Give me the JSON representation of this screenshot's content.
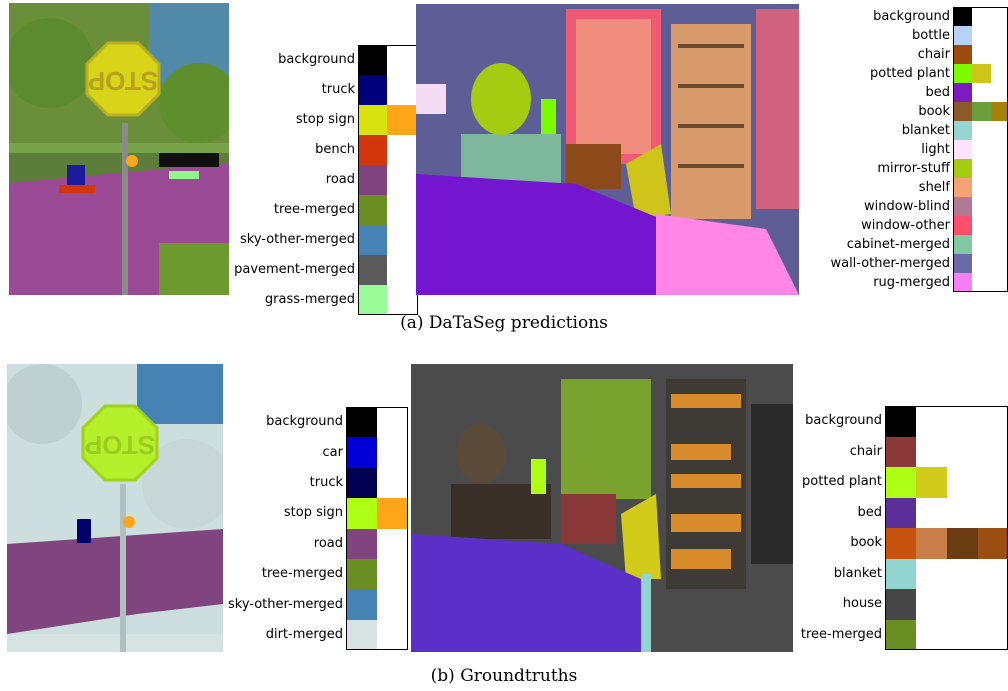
{
  "captions": {
    "a": "(a)  DaTaSeg predictions",
    "b": "(b)  Groundtruths"
  },
  "images": {
    "pred_street": {
      "sign_text": "STOP"
    },
    "gt_street": {
      "sign_text": "STOP"
    }
  },
  "legends": {
    "pred_street": [
      {
        "label": "background",
        "colors": [
          "#000000"
        ]
      },
      {
        "label": "truck",
        "colors": [
          "#00007a"
        ]
      },
      {
        "label": "stop sign",
        "colors": [
          "#d8e20d",
          "#ffa51a"
        ]
      },
      {
        "label": "bench",
        "colors": [
          "#d2370c"
        ]
      },
      {
        "label": "road",
        "colors": [
          "#80457f"
        ]
      },
      {
        "label": "tree-merged",
        "colors": [
          "#6b8e23"
        ]
      },
      {
        "label": "sky-other-merged",
        "colors": [
          "#4682b4"
        ]
      },
      {
        "label": "pavement-merged",
        "colors": [
          "#5a5a5a"
        ]
      },
      {
        "label": "grass-merged",
        "colors": [
          "#98fb98"
        ]
      }
    ],
    "pred_room": [
      {
        "label": "background",
        "colors": [
          "#000000"
        ]
      },
      {
        "label": "bottle",
        "colors": [
          "#b7d2f7"
        ]
      },
      {
        "label": "chair",
        "colors": [
          "#9e4a0c"
        ]
      },
      {
        "label": "potted plant",
        "colors": [
          "#7cfc00",
          "#cfc41a"
        ]
      },
      {
        "label": "bed",
        "colors": [
          "#7d1bbf"
        ]
      },
      {
        "label": "book",
        "colors": [
          "#8b5a2b",
          "#6a9f3b",
          "#a88208"
        ]
      },
      {
        "label": "blanket",
        "colors": [
          "#96d5d0"
        ]
      },
      {
        "label": "light",
        "colors": [
          "#ffe2ff"
        ]
      },
      {
        "label": "mirror-stuff",
        "colors": [
          "#a4cc11"
        ]
      },
      {
        "label": "shelf",
        "colors": [
          "#f6a274"
        ]
      },
      {
        "label": "window-blind",
        "colors": [
          "#b37a93"
        ]
      },
      {
        "label": "window-other",
        "colors": [
          "#ff4f6c"
        ]
      },
      {
        "label": "cabinet-merged",
        "colors": [
          "#80c9a2"
        ]
      },
      {
        "label": "wall-other-merged",
        "colors": [
          "#6a6aa6"
        ]
      },
      {
        "label": "rug-merged",
        "colors": [
          "#f77ef5"
        ]
      }
    ],
    "gt_street": [
      {
        "label": "background",
        "colors": [
          "#000000"
        ]
      },
      {
        "label": "car",
        "colors": [
          "#0000d8"
        ]
      },
      {
        "label": "truck",
        "colors": [
          "#000050"
        ]
      },
      {
        "label": "stop sign",
        "colors": [
          "#adff14",
          "#ffa51a"
        ]
      },
      {
        "label": "road",
        "colors": [
          "#80457f"
        ]
      },
      {
        "label": "tree-merged",
        "colors": [
          "#6b8e23"
        ]
      },
      {
        "label": "sky-other-merged",
        "colors": [
          "#4682b4"
        ]
      },
      {
        "label": "dirt-merged",
        "colors": [
          "#d5e3e3"
        ]
      }
    ],
    "gt_room": [
      {
        "label": "background",
        "colors": [
          "#000000"
        ]
      },
      {
        "label": "chair",
        "colors": [
          "#8b3a3a"
        ]
      },
      {
        "label": "potted plant",
        "colors": [
          "#adff14",
          "#d3cb1a"
        ]
      },
      {
        "label": "bed",
        "colors": [
          "#5a3098"
        ]
      },
      {
        "label": "book",
        "colors": [
          "#c8530e",
          "#c97f4a",
          "#6b3c12",
          "#9b4e11"
        ]
      },
      {
        "label": "blanket",
        "colors": [
          "#92d5d0"
        ]
      },
      {
        "label": "house",
        "colors": [
          "#464646"
        ]
      },
      {
        "label": "tree-merged",
        "colors": [
          "#6b8e23"
        ]
      }
    ]
  }
}
